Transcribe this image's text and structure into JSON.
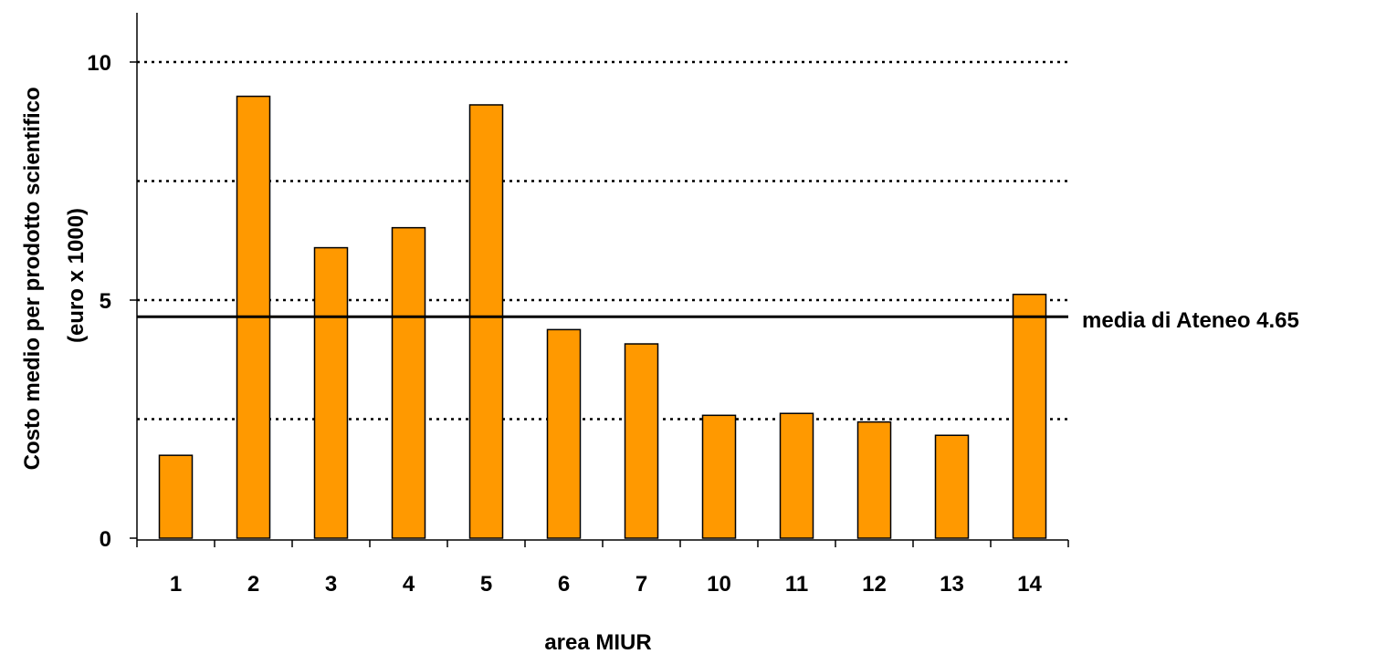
{
  "chart_data": {
    "type": "bar",
    "categories": [
      "1",
      "2",
      "3",
      "4",
      "5",
      "6",
      "7",
      "10",
      "11",
      "12",
      "13",
      "14"
    ],
    "values": [
      1.74,
      9.28,
      6.1,
      6.52,
      9.1,
      4.38,
      4.08,
      2.58,
      2.62,
      2.44,
      2.16,
      5.12
    ],
    "xlabel": "area MIUR",
    "ylabel_lines": [
      "Costo medio per prodotto scientifico",
      "(euro x 1000)"
    ],
    "ylim": [
      0,
      10
    ],
    "yticks": [
      0,
      5,
      10
    ],
    "gridlines": [
      2.5,
      5,
      7.5,
      10
    ],
    "grid": "dotted horizontal",
    "bar_color": "#FF9900",
    "reference_line": {
      "value": 4.65,
      "label": "media di Ateneo 4.65"
    }
  }
}
